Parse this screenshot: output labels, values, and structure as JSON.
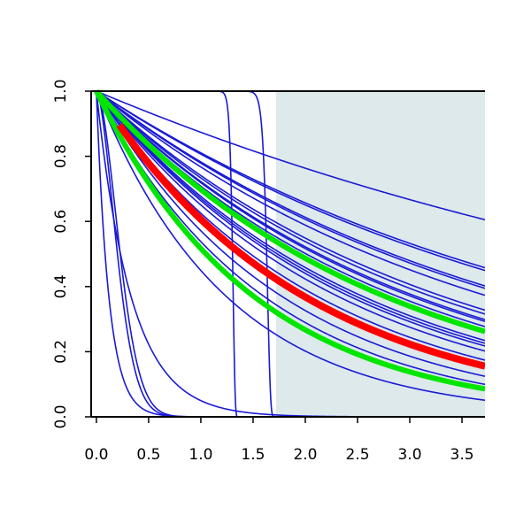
{
  "chart_data": {
    "type": "line",
    "title": "",
    "xlabel": "",
    "ylabel": "",
    "xlim": [
      -0.05,
      3.72
    ],
    "ylim": [
      0.0,
      1.0
    ],
    "x_ticks": [
      "0.0",
      "0.5",
      "1.0",
      "1.5",
      "2.0",
      "2.5",
      "3.0",
      "3.5"
    ],
    "y_ticks": [
      "0.0",
      "0.2",
      "0.4",
      "0.6",
      "0.8",
      "1.0"
    ],
    "shaded_region": {
      "x_from": 1.72,
      "x_to": 3.72,
      "color": "#dde9ea"
    },
    "colors": {
      "blue": "#1a1ad6",
      "red": "#ff0000",
      "green": "#00e600",
      "axis": "#000000"
    },
    "series": [
      {
        "kind": "exp",
        "rate": 0.135,
        "color": "blue",
        "width": 1.6
      },
      {
        "kind": "exp",
        "rate": 0.21,
        "color": "blue",
        "width": 1.6
      },
      {
        "kind": "exp",
        "rate": 0.215,
        "color": "blue",
        "width": 1.6
      },
      {
        "kind": "exp",
        "rate": 0.245,
        "color": "blue",
        "width": 1.6
      },
      {
        "kind": "exp",
        "rate": 0.25,
        "color": "blue",
        "width": 1.6
      },
      {
        "kind": "exp",
        "rate": 0.265,
        "color": "blue",
        "width": 1.6
      },
      {
        "kind": "exp",
        "rate": 0.3,
        "color": "blue",
        "width": 1.6
      },
      {
        "kind": "exp",
        "rate": 0.31,
        "color": "blue",
        "width": 1.6
      },
      {
        "kind": "exp",
        "rate": 0.325,
        "color": "blue",
        "width": 1.6
      },
      {
        "kind": "exp",
        "rate": 0.33,
        "color": "blue",
        "width": 1.6
      },
      {
        "kind": "exp",
        "rate": 0.345,
        "color": "blue",
        "width": 1.6
      },
      {
        "kind": "exp",
        "rate": 0.36,
        "color": "blue",
        "width": 1.6
      },
      {
        "kind": "exp",
        "rate": 0.39,
        "color": "blue",
        "width": 1.6
      },
      {
        "kind": "exp",
        "rate": 0.4,
        "color": "blue",
        "width": 1.6
      },
      {
        "kind": "exp",
        "rate": 0.41,
        "color": "blue",
        "width": 1.6
      },
      {
        "kind": "exp",
        "rate": 0.43,
        "color": "blue",
        "width": 1.6
      },
      {
        "kind": "exp",
        "rate": 0.47,
        "color": "blue",
        "width": 1.6
      },
      {
        "kind": "exp",
        "rate": 0.5,
        "color": "blue",
        "width": 1.6
      },
      {
        "kind": "exp",
        "rate": 0.56,
        "color": "blue",
        "width": 1.6
      },
      {
        "kind": "exp",
        "rate": 0.62,
        "color": "blue",
        "width": 1.6
      },
      {
        "kind": "exp",
        "rate": 0.8,
        "color": "blue",
        "width": 1.6
      },
      {
        "kind": "exp",
        "rate": 3.0,
        "color": "blue",
        "width": 1.6
      },
      {
        "kind": "weibull",
        "scale": 0.25,
        "shape": 1.7,
        "color": "blue",
        "width": 1.6
      },
      {
        "kind": "weibull",
        "scale": 0.28,
        "shape": 1.8,
        "color": "blue",
        "width": 1.6
      },
      {
        "kind": "weibull",
        "scale": 0.12,
        "shape": 1.0,
        "color": "blue",
        "width": 1.6
      },
      {
        "kind": "weibull",
        "scale": 1.31,
        "shape": 70,
        "color": "blue",
        "width": 1.6
      },
      {
        "kind": "weibull",
        "scale": 1.64,
        "shape": 60,
        "color": "blue",
        "width": 1.6
      },
      {
        "kind": "exp",
        "rate": 0.36,
        "color": "green",
        "width": 6,
        "x_start": 0.0
      },
      {
        "kind": "exp",
        "rate": 0.66,
        "color": "green",
        "width": 6,
        "x_start": 0.0
      },
      {
        "kind": "exp",
        "rate": 0.5,
        "color": "red",
        "width": 8,
        "x_start": 0.22
      }
    ]
  }
}
